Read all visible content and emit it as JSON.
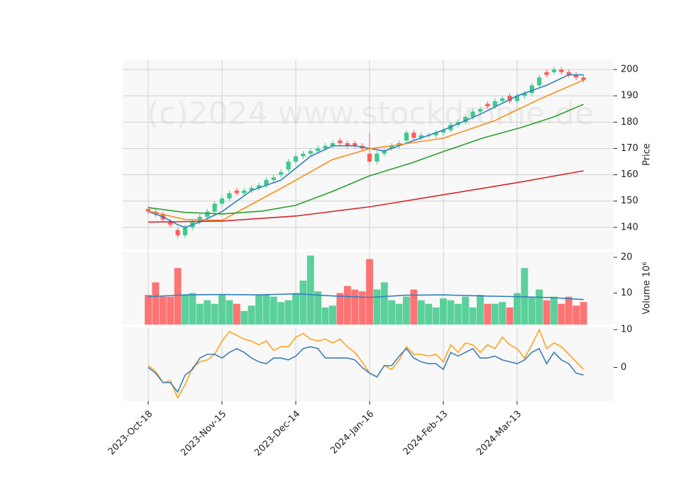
{
  "chart_data": [
    {
      "type": "candlestick",
      "watermark": "(c)2024 www.stockdrome.de",
      "ylabel": "Price",
      "xlim": [
        -3.46,
        63.08
      ],
      "ylim": [
        131.6,
        203.8
      ],
      "yticks": [
        140,
        150,
        160,
        170,
        180,
        190,
        200
      ],
      "grid": true,
      "xticks": [
        {
          "value": 0,
          "label": "2023-Oct-18"
        },
        {
          "value": 10,
          "label": "2023-Nov-15"
        },
        {
          "value": 20,
          "label": "2023-Dec-14"
        },
        {
          "value": 30,
          "label": "2024-Jan-16"
        },
        {
          "value": 40,
          "label": "2024-Feb-13"
        },
        {
          "value": 50,
          "label": "2024-Mar-13"
        }
      ],
      "up_color": "#3fc98b",
      "down_color": "#ff5c5c",
      "open": [
        147,
        146,
        145,
        142,
        139,
        137,
        140,
        142,
        144,
        146,
        149,
        151,
        154,
        153,
        154,
        155,
        156,
        158,
        160,
        162,
        165,
        167,
        168,
        169,
        170,
        171,
        173,
        172,
        172,
        171,
        168,
        165,
        168,
        170,
        171,
        173,
        176,
        174,
        175,
        175,
        176,
        177,
        179,
        180,
        182,
        184,
        187,
        186,
        188,
        190,
        188,
        190,
        191,
        194,
        199,
        199,
        200,
        199,
        198,
        197
      ],
      "high": [
        148,
        147,
        146,
        143,
        140,
        141,
        143,
        145,
        147,
        150,
        152,
        154,
        155,
        155,
        156,
        157,
        159,
        160,
        162,
        166,
        168,
        169,
        170,
        171,
        172,
        173,
        174,
        173,
        173,
        172,
        176,
        169,
        170,
        172,
        173,
        177,
        177,
        176,
        176,
        177,
        178,
        180,
        181,
        183,
        185,
        186,
        188,
        189,
        190,
        191,
        191,
        192,
        195,
        198,
        200,
        201,
        201,
        200,
        199,
        198
      ],
      "low": [
        145,
        144,
        142,
        140,
        136,
        136,
        139,
        141,
        143,
        145,
        148,
        150,
        152,
        152,
        153,
        154,
        155,
        157,
        159,
        161,
        164,
        166,
        167,
        168,
        169,
        170,
        171,
        170,
        170,
        169,
        164,
        164,
        167,
        169,
        170,
        172,
        173,
        173,
        174,
        174,
        175,
        176,
        178,
        179,
        181,
        183,
        185,
        185,
        187,
        187,
        187,
        189,
        190,
        193,
        197,
        198,
        198,
        197,
        196,
        195
      ],
      "close": [
        146,
        145,
        143,
        141,
        137,
        140,
        142,
        144,
        146,
        149,
        151,
        153,
        153,
        154,
        155,
        156,
        158,
        159,
        161,
        165,
        167,
        168,
        169,
        170,
        171,
        172,
        172,
        171,
        171,
        170,
        165,
        168,
        169,
        171,
        172,
        176,
        174,
        175,
        175,
        176,
        177,
        179,
        180,
        182,
        184,
        185,
        186,
        188,
        189,
        188,
        190,
        191,
        194,
        197,
        198,
        200,
        199,
        198,
        197,
        196
      ],
      "series": [
        {
          "color": "#2f7fc1",
          "x": [
            0,
            2,
            4,
            5,
            7,
            10,
            14,
            18,
            22,
            25,
            28,
            30,
            32,
            35,
            40,
            45,
            50,
            54,
            57,
            59
          ],
          "values": [
            146,
            144,
            141,
            140,
            142,
            146,
            154,
            158,
            167,
            171,
            171,
            170,
            169,
            172,
            177,
            183,
            190,
            194,
            198,
            198
          ]
        },
        {
          "color": "#ff8c1a",
          "x": [
            0,
            5,
            10,
            13.5,
            18.5,
            25,
            30,
            33.5,
            40,
            47,
            53,
            59
          ],
          "values": [
            146.2,
            143,
            142.7,
            148,
            155.6,
            165.8,
            169.9,
            171.2,
            173.9,
            180.6,
            188.7,
            196
          ]
        },
        {
          "color": "#2ca02c",
          "x": [
            0,
            5,
            10,
            15.5,
            20,
            25,
            30,
            35.7,
            40,
            45.3,
            50.6,
            55,
            59
          ],
          "values": [
            147.5,
            145.7,
            145.1,
            146.2,
            148.4,
            153.7,
            159.6,
            164.5,
            168.8,
            173.9,
            178,
            182,
            186.8
          ]
        },
        {
          "color": "#d62728",
          "x": [
            0,
            10,
            20,
            30,
            40,
            50,
            59
          ],
          "values": [
            142,
            142.4,
            144.3,
            147.8,
            152.4,
            157,
            161.5
          ]
        }
      ]
    },
    {
      "type": "bar",
      "ylabel": "Volume  10⁶",
      "ylim": [
        1.2,
        21.6
      ],
      "yticks": [
        10,
        20
      ],
      "values": [
        9.5,
        13,
        9,
        9,
        17,
        9.5,
        10,
        7,
        8,
        7,
        9.5,
        8,
        7,
        5,
        6.5,
        9.5,
        9.5,
        9,
        7.5,
        8,
        10,
        13.5,
        20.5,
        10.5,
        6,
        6.5,
        10,
        12,
        11,
        10.5,
        19.5,
        11,
        13,
        8,
        7,
        9,
        11,
        8,
        7,
        6,
        8.5,
        8,
        7,
        9,
        6,
        9.5,
        7,
        7,
        7.5,
        6,
        10,
        17,
        9,
        11,
        8,
        9,
        7,
        9,
        6.5,
        7.5
      ],
      "series": [
        {
          "color": "#2f7fc1",
          "x": [
            0,
            5,
            10,
            15,
            20,
            25,
            30,
            35,
            40,
            45,
            50,
            55,
            59
          ],
          "values": [
            9,
            9.5,
            9.6,
            9.5,
            9.8,
            9.2,
            8.8,
            9.4,
            9.5,
            9.2,
            9,
            8.7,
            8.2
          ]
        }
      ]
    },
    {
      "type": "line",
      "ylim": [
        -8.9,
        10.6
      ],
      "yticks": [
        0,
        10
      ],
      "series": [
        {
          "color": "#ffa21a",
          "values": [
            0.5,
            -1,
            -4,
            -3.5,
            -8,
            -4.5,
            0,
            1.5,
            2,
            3.5,
            7,
            9.5,
            8.5,
            7.5,
            7,
            6,
            7,
            4.5,
            5.5,
            5.5,
            8,
            9,
            7.5,
            7,
            7.5,
            6.5,
            7.5,
            5.5,
            4,
            1.5,
            -1.5,
            -2.5,
            0.5,
            -0.5,
            2,
            5.5,
            3.5,
            3.5,
            3,
            3.5,
            1.5,
            6,
            4,
            6.5,
            6,
            4,
            6,
            5,
            8,
            6,
            5,
            2.5,
            6,
            10,
            5,
            6.5,
            5.5,
            3.5,
            1.5,
            -0.5
          ]
        },
        {
          "color": "#3c7fb8",
          "values": [
            0,
            -1.5,
            -4,
            -4,
            -6.5,
            -2,
            -0.5,
            2.5,
            3.5,
            3.5,
            2.5,
            4,
            5,
            4,
            2.5,
            1.5,
            1,
            2.5,
            2.5,
            2,
            3,
            5,
            5.5,
            5,
            2.5,
            2.5,
            2.5,
            2.5,
            2,
            0,
            -1.5,
            -2.5,
            0.5,
            0.5,
            3,
            5,
            2.5,
            1.5,
            1,
            1,
            -0.5,
            4,
            3,
            4,
            5,
            2.5,
            2.5,
            3,
            2,
            1.5,
            1,
            2,
            4,
            5,
            1,
            4,
            2,
            1,
            -1.5,
            -2
          ]
        }
      ]
    }
  ]
}
